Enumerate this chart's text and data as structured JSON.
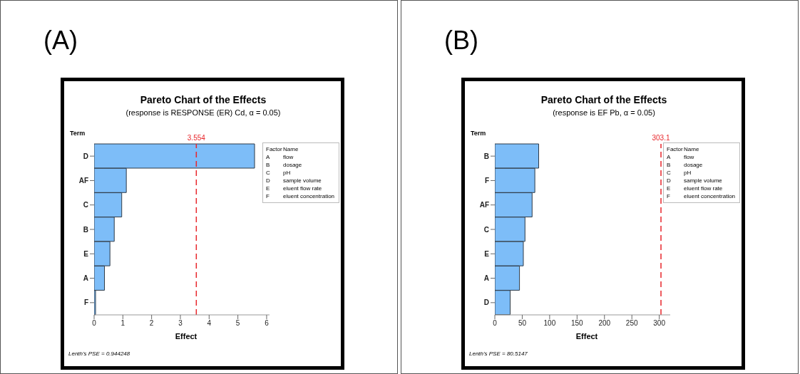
{
  "chart_data": [
    {
      "type": "bar",
      "orientation": "horizontal",
      "title": "Pareto Chart of the Effects",
      "subtitle": "(response is RESPONSE (ER) Cd, α = 0.05)",
      "xlabel": "Effect",
      "ylabel": "Term",
      "categories": [
        "D",
        "AF",
        "C",
        "B",
        "E",
        "A",
        "F"
      ],
      "values": [
        5.58,
        1.12,
        0.96,
        0.7,
        0.55,
        0.36,
        0.05
      ],
      "color": "#7dbdf8",
      "xlim": [
        0,
        6.1
      ],
      "xticks": [
        0,
        1,
        2,
        3,
        4,
        5,
        6
      ],
      "ref_lines": [
        {
          "axis": "x",
          "value": 3.554,
          "label": "3.554",
          "color": "#e8262b",
          "line_style": "dashed"
        }
      ],
      "annotations": [
        "(A)",
        "Lenth's PSE = 0.944248",
        "Factor",
        "Name",
        "A",
        "flow",
        "B",
        "dosage",
        "C",
        "pH",
        "D",
        "sample volume",
        "E",
        "eluent flow rate",
        "F",
        "eluent concentration"
      ]
    },
    {
      "type": "bar",
      "orientation": "horizontal",
      "title": "Pareto Chart of the Effects",
      "subtitle": "(response is EF Pb, α = 0.05)",
      "xlabel": "Effect",
      "ylabel": "Term",
      "categories": [
        "B",
        "F",
        "AF",
        "C",
        "E",
        "A",
        "D"
      ],
      "values": [
        80,
        73,
        68,
        55,
        52,
        45,
        28
      ],
      "color": "#7dbdf8",
      "xlim": [
        0,
        320
      ],
      "xticks": [
        0,
        50,
        100,
        150,
        200,
        250,
        300
      ],
      "ref_lines": [
        {
          "axis": "x",
          "value": 303.1,
          "label": "303.1",
          "color": "#e8262b",
          "line_style": "dashed"
        }
      ],
      "annotations": [
        "(B)",
        "Lenth's PSE = 80.5147",
        "Factor",
        "Name",
        "A",
        "flow",
        "B",
        "dosage",
        "C",
        "pH",
        "D",
        "sample volume",
        "E",
        "eluent flow rate",
        "F",
        "eluent concentration"
      ]
    }
  ]
}
